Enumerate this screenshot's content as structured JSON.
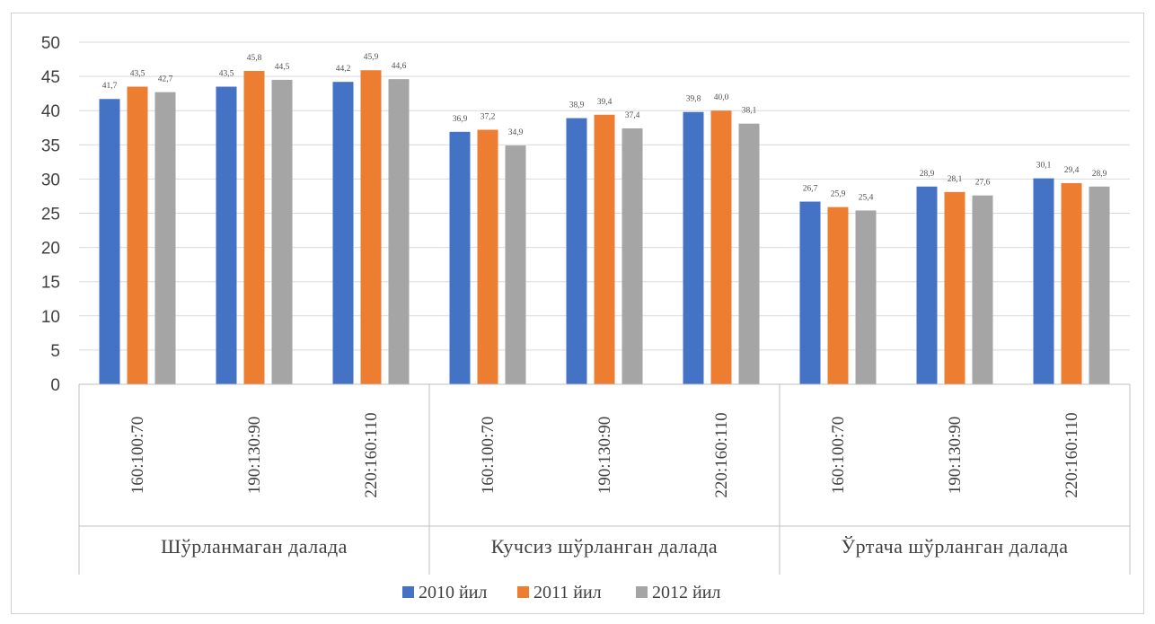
{
  "chart_data": {
    "type": "bar",
    "title": "",
    "xlabel": "",
    "ylabel": "",
    "ylim": [
      0,
      50
    ],
    "yticks": [
      0,
      5,
      10,
      15,
      20,
      25,
      30,
      35,
      40,
      45,
      50
    ],
    "grid": true,
    "legend_position": "bottom",
    "groups": [
      {
        "label": "Шўрланмаган  далада",
        "categories": [
          "160:100:70",
          "190:130:90",
          "220:160:110"
        ]
      },
      {
        "label": "Кучсиз шўрланган  далада",
        "categories": [
          "160:100:70",
          "190:130:90",
          "220:160:110"
        ]
      },
      {
        "label": "Ўртача шўрланган  далада",
        "categories": [
          "160:100:70",
          "190:130:90",
          "220:160:110"
        ]
      }
    ],
    "series": [
      {
        "name": "2010 йил",
        "color": "#4472c4",
        "values": [
          41.7,
          43.5,
          44.2,
          36.9,
          38.9,
          39.8,
          26.7,
          28.9,
          30.1
        ],
        "labels": [
          "41,7",
          "43,5",
          "44,2",
          "36,9",
          "38,9",
          "39,8",
          "26,7",
          "28,9",
          "30,1"
        ]
      },
      {
        "name": "2011 йил",
        "color": "#ed7d31",
        "values": [
          43.5,
          45.8,
          45.9,
          37.2,
          39.4,
          40.0,
          25.9,
          28.1,
          29.4
        ],
        "labels": [
          "43,5",
          "45,8",
          "45,9",
          "37,2",
          "39,4",
          "40,0",
          "25,9",
          "28,1",
          "29,4"
        ]
      },
      {
        "name": "2012 йил",
        "color": "#a5a5a5",
        "values": [
          42.7,
          44.5,
          44.6,
          34.9,
          37.4,
          38.1,
          25.4,
          27.6,
          28.9
        ],
        "labels": [
          "42,7",
          "44,5",
          "44,6",
          "34,9",
          "37,4",
          "38,1",
          "25,4",
          "27,6",
          "28,9"
        ]
      }
    ]
  }
}
